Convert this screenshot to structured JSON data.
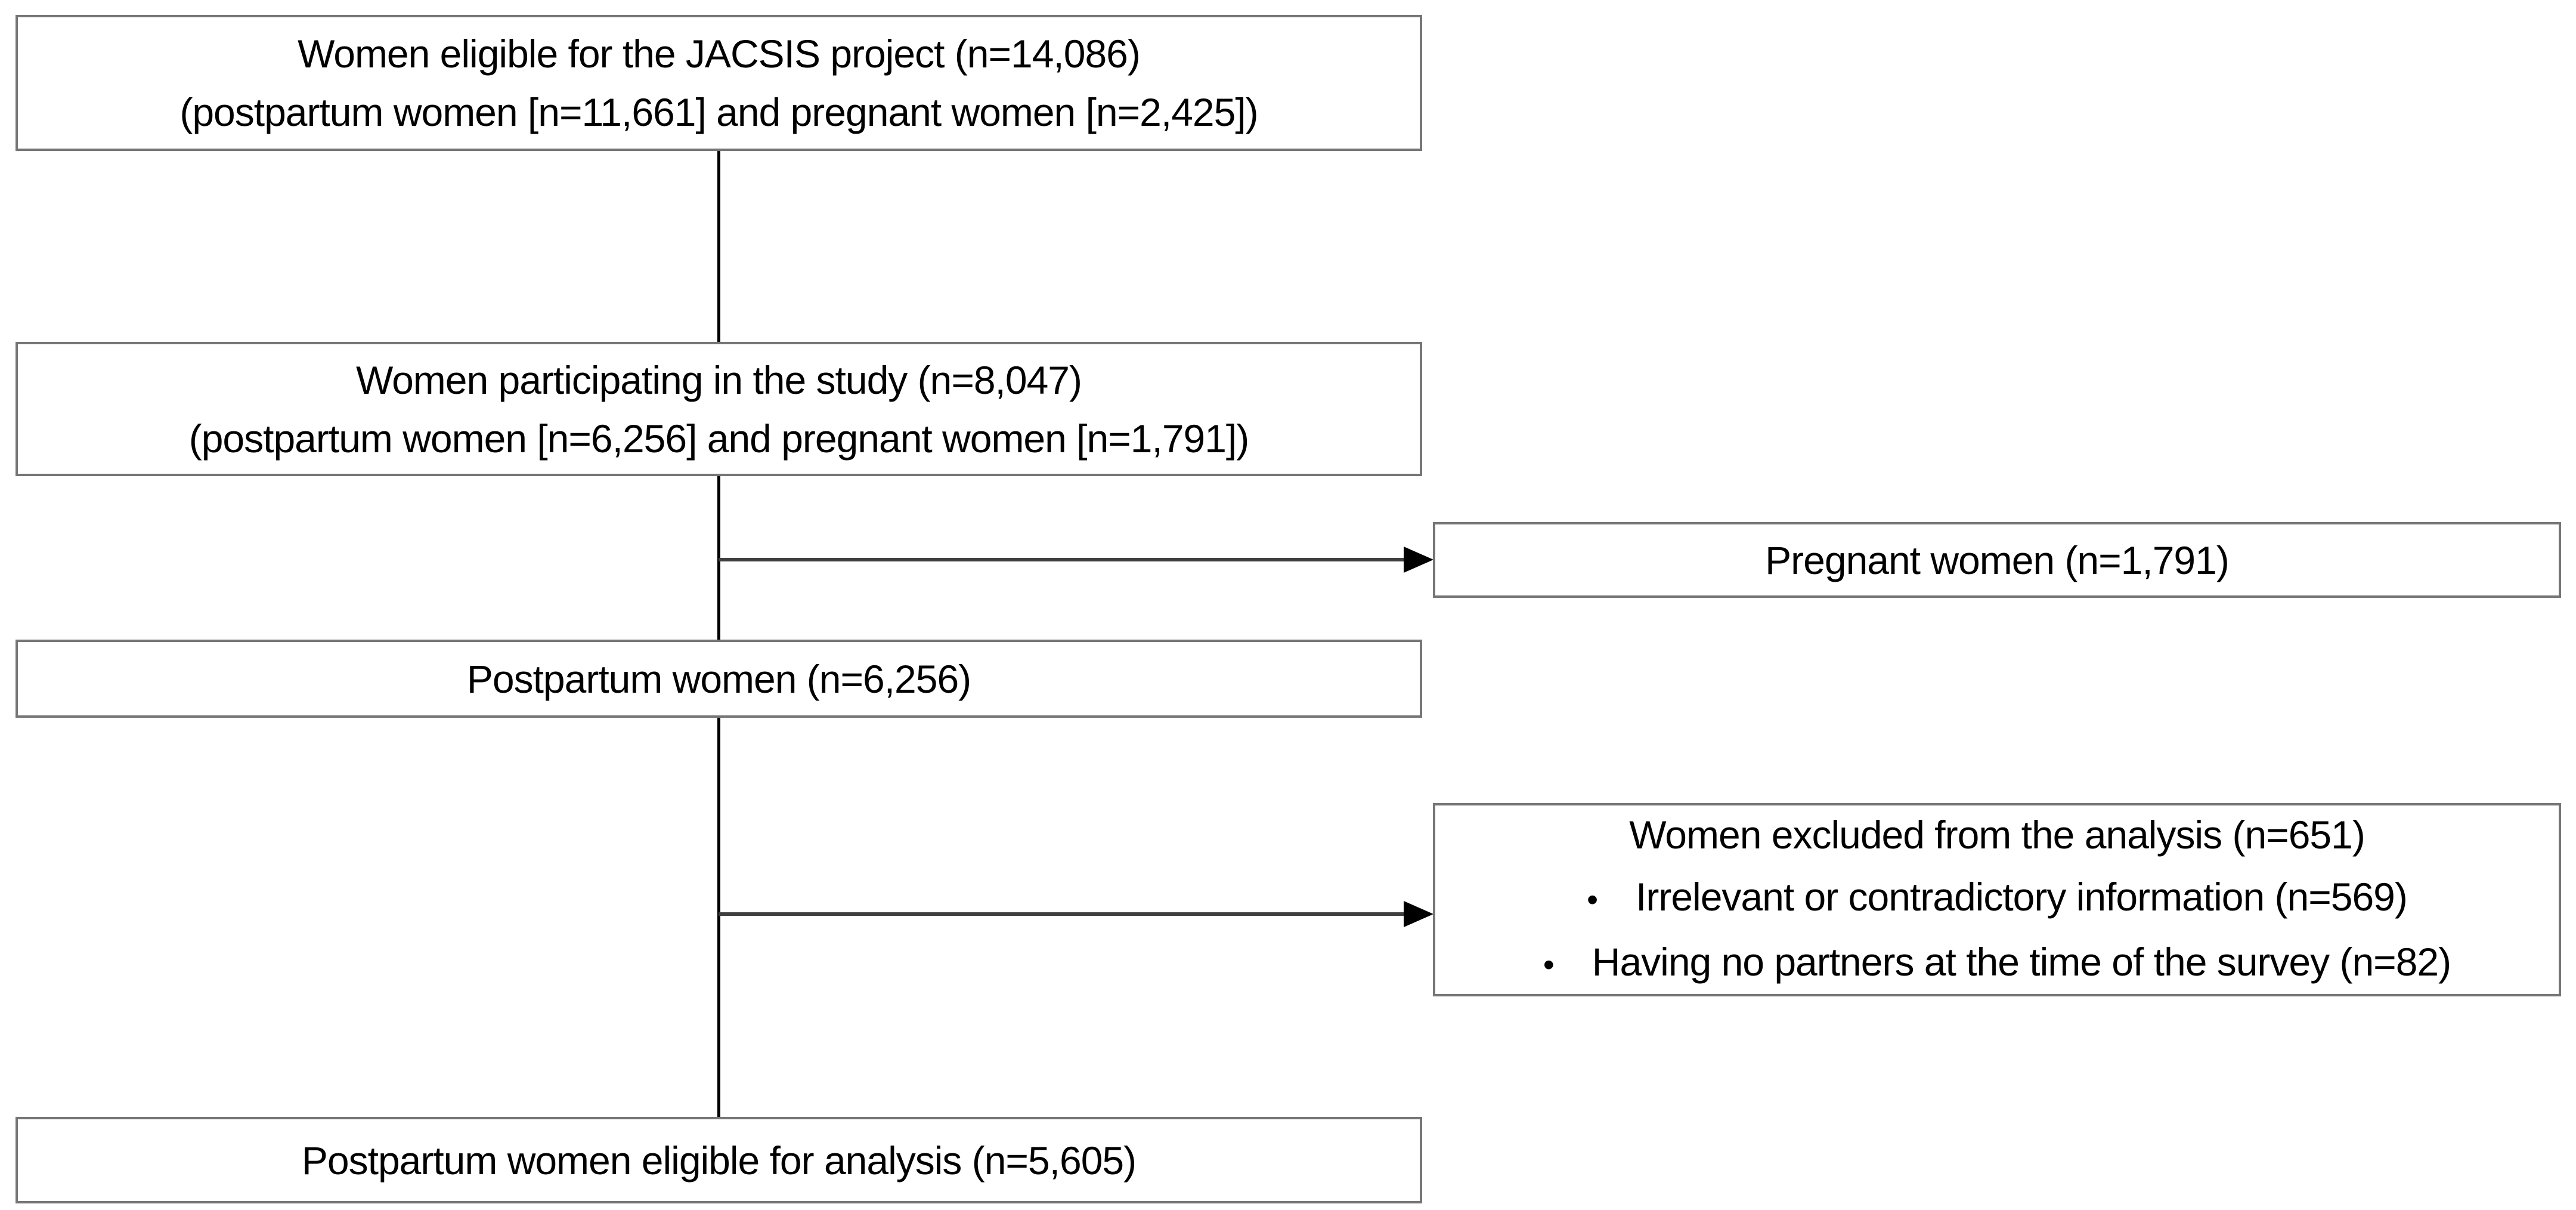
{
  "figure": {
    "background_color": "#ffffff",
    "box_border_color": "#767676",
    "connector_color": "#000000",
    "arrow_line_color": "#3f3f3f",
    "text_color": "#000000",
    "bullet_char": "•",
    "boxes": {
      "eligible": {
        "lines": [
          "Women eligible for the JACSIS project (n=14,086)",
          "(postpartum women [n=11,661] and pregnant women [n=2,425])"
        ]
      },
      "participating": {
        "lines": [
          "Women participating in the study (n=8,047)",
          "(postpartum women [n=6,256] and pregnant women [n=1,791])"
        ]
      },
      "pregnant": {
        "label": "Pregnant women (n=1,791)"
      },
      "postpartum": {
        "label": "Postpartum women (n=6,256)"
      },
      "excluded": {
        "heading": "Women excluded from the analysis (n=651)",
        "bullets": [
          "Irrelevant or contradictory information (n=569)",
          "Having no partners at the time of the survey (n=82)"
        ]
      },
      "final": {
        "label": "Postpartum women eligible for analysis (n=5,605)"
      }
    }
  }
}
